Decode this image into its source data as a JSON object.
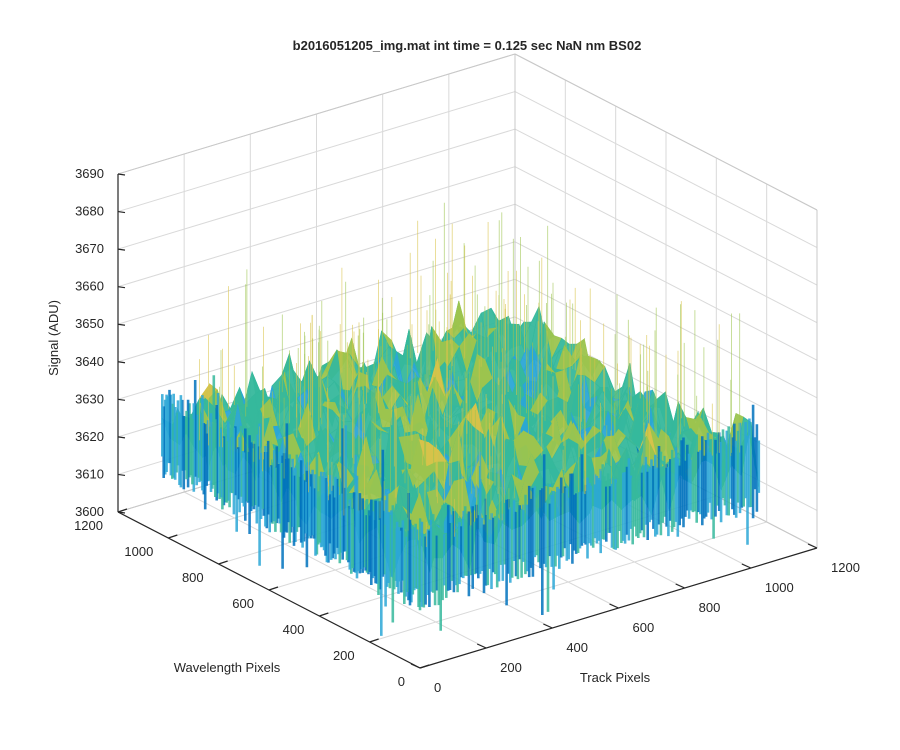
{
  "chart_data": {
    "type": "surface",
    "title": "b2016051205_img.mat int time = 0.125 sec  NaN nm BS02",
    "xlabel": "Track Pixels",
    "ylabel": "Wavelength Pixels",
    "zlabel": "Signal (ADU)",
    "xlim": [
      0,
      1200
    ],
    "ylim": [
      0,
      1200
    ],
    "zlim": [
      3600,
      3690
    ],
    "x_ticks": [
      "0",
      "200",
      "400",
      "600",
      "800",
      "1000",
      "1200"
    ],
    "y_ticks": [
      "0",
      "200",
      "400",
      "600",
      "800",
      "1000",
      "1200"
    ],
    "z_ticks": [
      "3600",
      "3610",
      "3620",
      "3630",
      "3640",
      "3650",
      "3660",
      "3670",
      "3680",
      "3690"
    ],
    "surface": {
      "x_range": [
        0,
        1024
      ],
      "y_range": [
        0,
        1024
      ],
      "mean": 3630,
      "noise_typical_range": [
        3615,
        3645
      ],
      "spike_range": [
        3605,
        3668
      ],
      "colormap": [
        "#0072bd",
        "#2ba7d6",
        "#36b89c",
        "#9cc44e",
        "#d9c34a"
      ]
    },
    "grid": true
  }
}
